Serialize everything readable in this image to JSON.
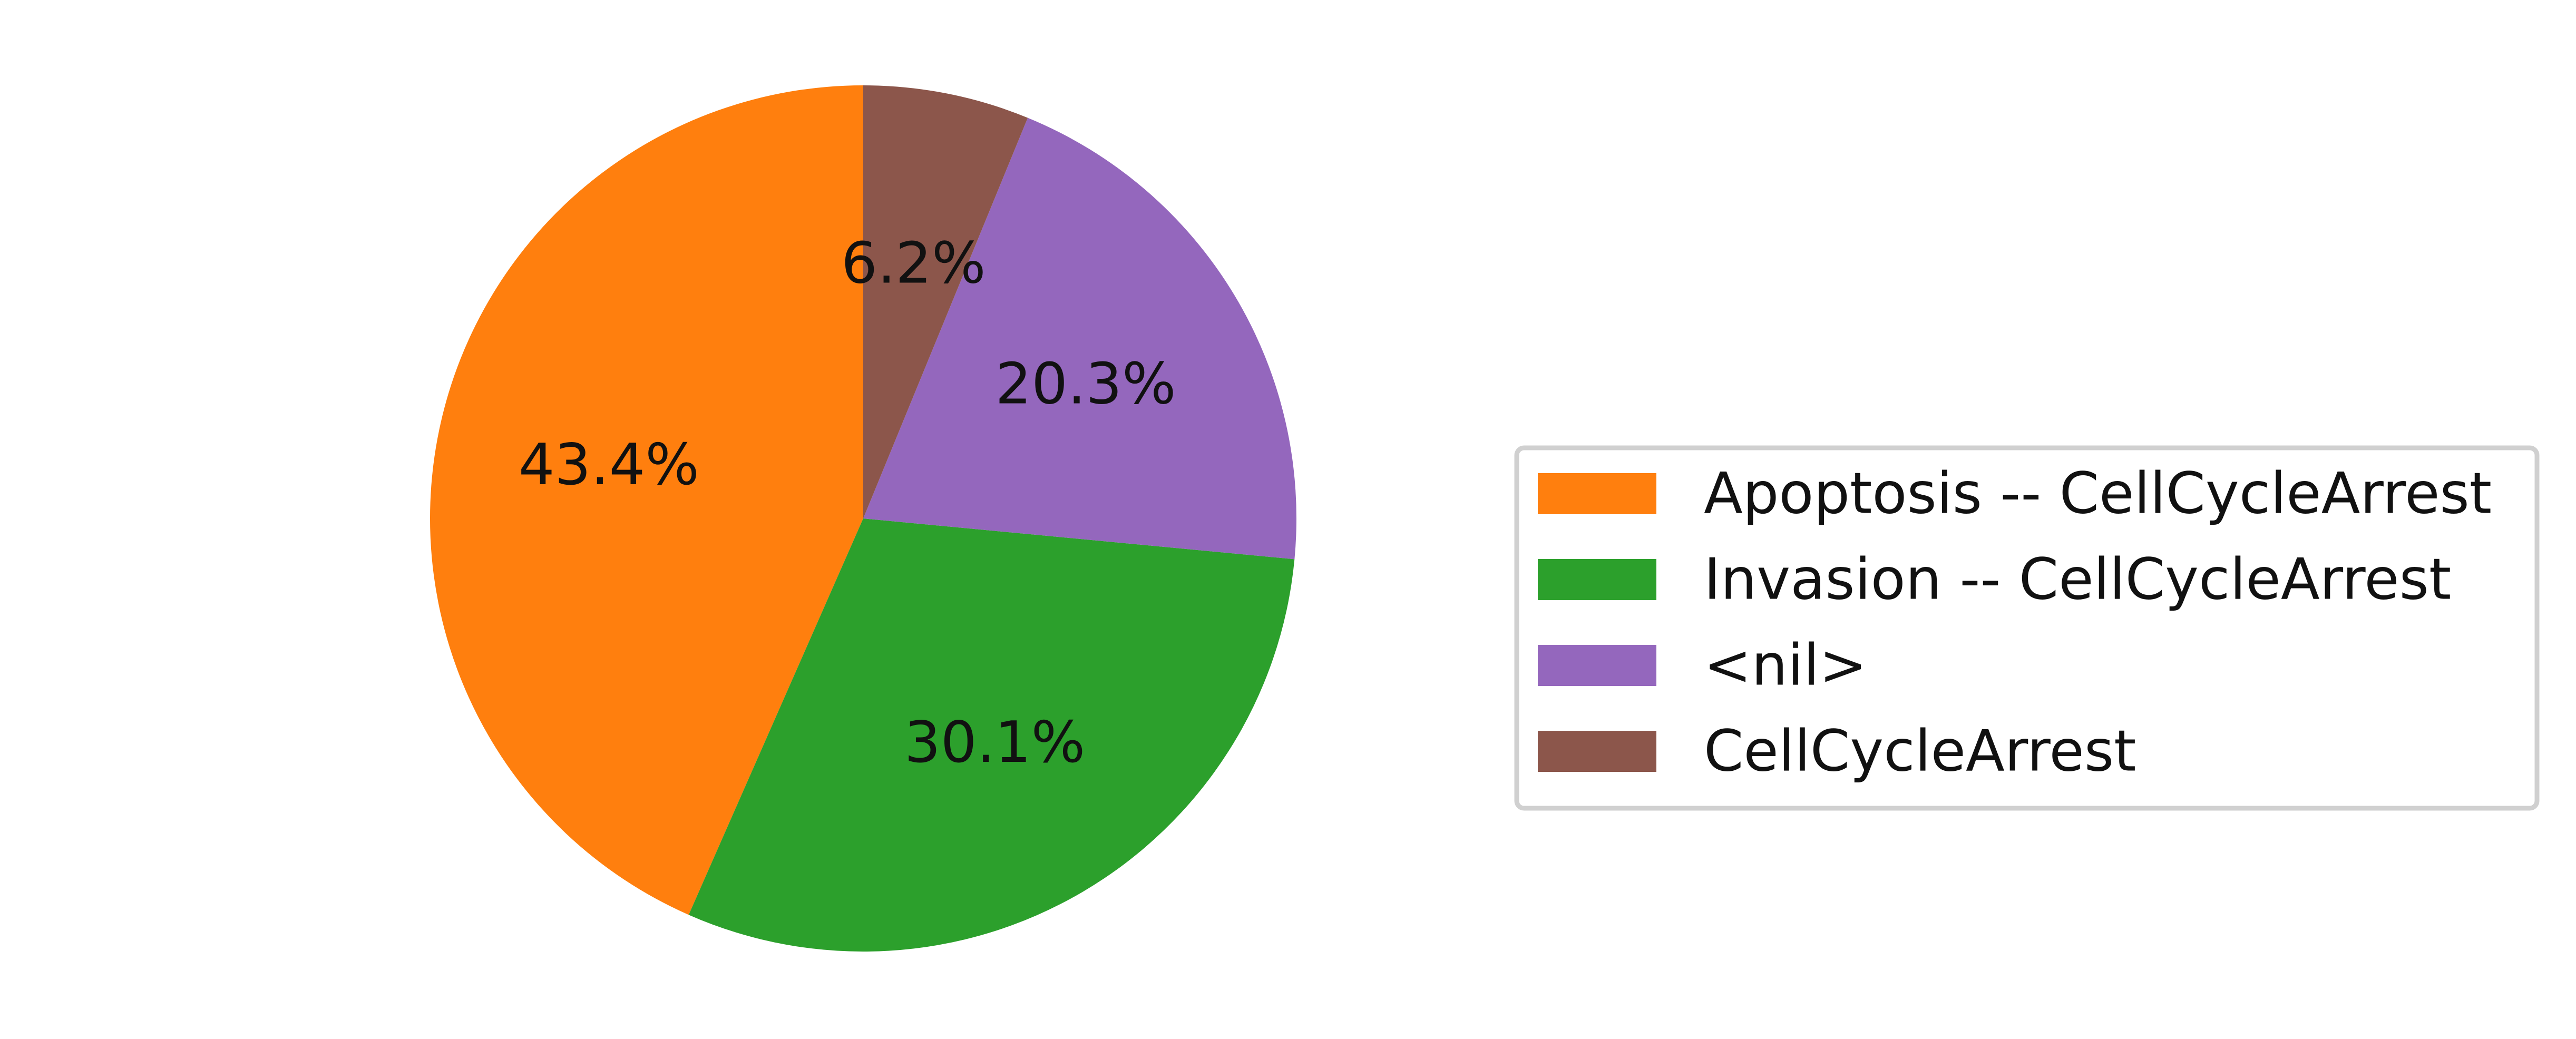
{
  "chart_data": {
    "type": "pie",
    "start_angle_deg": 90,
    "direction": "counterclockwise",
    "legend_position": "right",
    "slices": [
      {
        "label": "Apoptosis -- CellCycleArrest",
        "value": 43.4,
        "pct_label": "43.4%",
        "color": "#ff7f0e"
      },
      {
        "label": "Invasion -- CellCycleArrest",
        "value": 30.1,
        "pct_label": "30.1%",
        "color": "#2ca02c"
      },
      {
        "label": "<nil>",
        "value": 20.3,
        "pct_label": "20.3%",
        "color": "#9467bd"
      },
      {
        "label": "CellCycleArrest",
        "value": 6.2,
        "pct_label": "6.2%",
        "color": "#8c564b"
      }
    ]
  }
}
